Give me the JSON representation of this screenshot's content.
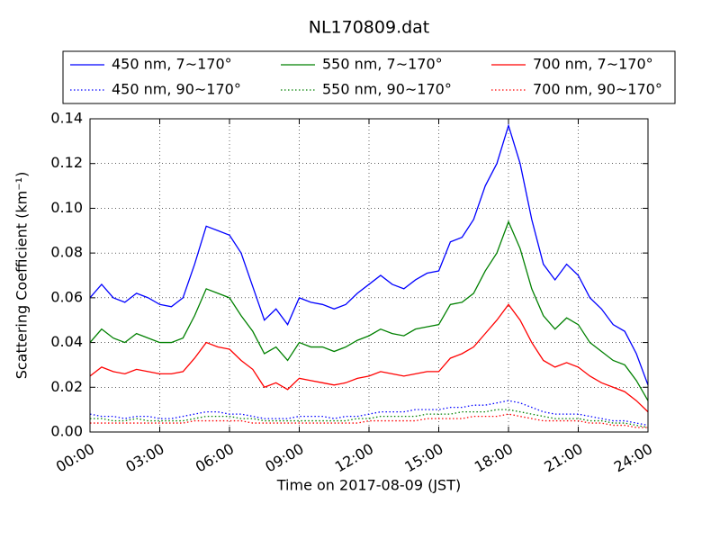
{
  "chart_data": {
    "type": "line",
    "title": "NL170809.dat",
    "xlabel": "Time on 2017-08-09 (JST)",
    "ylabel": "Scattering Coefficient (km⁻¹)",
    "legend_position": "top",
    "grid": true,
    "xlim": [
      0,
      24
    ],
    "xticks": [
      {
        "value": 0,
        "label": "00:00"
      },
      {
        "value": 3,
        "label": "03:00"
      },
      {
        "value": 6,
        "label": "06:00"
      },
      {
        "value": 9,
        "label": "09:00"
      },
      {
        "value": 12,
        "label": "12:00"
      },
      {
        "value": 15,
        "label": "15:00"
      },
      {
        "value": 18,
        "label": "18:00"
      },
      {
        "value": 21,
        "label": "21:00"
      },
      {
        "value": 24,
        "label": "24:00"
      }
    ],
    "ylim": [
      0,
      0.14
    ],
    "yticks": [
      {
        "value": 0,
        "label": "0.00"
      },
      {
        "value": 0.02,
        "label": "0.02"
      },
      {
        "value": 0.04,
        "label": "0.04"
      },
      {
        "value": 0.06,
        "label": "0.06"
      },
      {
        "value": 0.08,
        "label": "0.08"
      },
      {
        "value": 0.1,
        "label": "0.10"
      },
      {
        "value": 0.12,
        "label": "0.12"
      },
      {
        "value": 0.14,
        "label": "0.14"
      }
    ],
    "x": [
      0,
      0.5,
      1,
      1.5,
      2,
      2.5,
      3,
      3.5,
      4,
      4.5,
      5,
      5.5,
      6,
      6.5,
      7,
      7.5,
      8,
      8.5,
      9,
      9.5,
      10,
      10.5,
      11,
      11.5,
      12,
      12.5,
      13,
      13.5,
      14,
      14.5,
      15,
      15.5,
      16,
      16.5,
      17,
      17.5,
      18,
      18.5,
      19,
      19.5,
      20,
      20.5,
      21,
      21.5,
      22,
      22.5,
      23,
      23.5,
      24
    ],
    "series": [
      {
        "name": "450 nm, 7∼170°",
        "color": "#0000ff",
        "linestyle": "solid",
        "values": [
          0.06,
          0.066,
          0.06,
          0.058,
          0.062,
          0.06,
          0.057,
          0.056,
          0.06,
          0.075,
          0.092,
          0.09,
          0.088,
          0.08,
          0.065,
          0.05,
          0.055,
          0.048,
          0.06,
          0.058,
          0.057,
          0.055,
          0.057,
          0.062,
          0.066,
          0.07,
          0.066,
          0.064,
          0.068,
          0.071,
          0.072,
          0.085,
          0.087,
          0.095,
          0.11,
          0.12,
          0.137,
          0.12,
          0.095,
          0.075,
          0.068,
          0.075,
          0.07,
          0.06,
          0.055,
          0.048,
          0.045,
          0.035,
          0.021
        ]
      },
      {
        "name": "450 nm, 90∼170°",
        "color": "#0000ff",
        "linestyle": "dotted",
        "values": [
          0.008,
          0.007,
          0.007,
          0.006,
          0.007,
          0.007,
          0.006,
          0.006,
          0.007,
          0.008,
          0.009,
          0.009,
          0.008,
          0.008,
          0.007,
          0.006,
          0.006,
          0.006,
          0.007,
          0.007,
          0.007,
          0.006,
          0.007,
          0.007,
          0.008,
          0.009,
          0.009,
          0.009,
          0.01,
          0.01,
          0.01,
          0.011,
          0.011,
          0.012,
          0.012,
          0.013,
          0.014,
          0.013,
          0.011,
          0.009,
          0.008,
          0.008,
          0.008,
          0.007,
          0.006,
          0.005,
          0.005,
          0.004,
          0.003
        ]
      },
      {
        "name": "550 nm, 7∼170°",
        "color": "#008000",
        "linestyle": "solid",
        "values": [
          0.04,
          0.046,
          0.042,
          0.04,
          0.044,
          0.042,
          0.04,
          0.04,
          0.042,
          0.052,
          0.064,
          0.062,
          0.06,
          0.052,
          0.045,
          0.035,
          0.038,
          0.032,
          0.04,
          0.038,
          0.038,
          0.036,
          0.038,
          0.041,
          0.043,
          0.046,
          0.044,
          0.043,
          0.046,
          0.047,
          0.048,
          0.057,
          0.058,
          0.062,
          0.072,
          0.08,
          0.094,
          0.082,
          0.064,
          0.052,
          0.046,
          0.051,
          0.048,
          0.04,
          0.036,
          0.032,
          0.03,
          0.023,
          0.014
        ]
      },
      {
        "name": "550 nm, 90∼170°",
        "color": "#008000",
        "linestyle": "dotted",
        "values": [
          0.006,
          0.006,
          0.005,
          0.005,
          0.006,
          0.005,
          0.005,
          0.005,
          0.005,
          0.006,
          0.007,
          0.007,
          0.007,
          0.006,
          0.006,
          0.005,
          0.005,
          0.005,
          0.005,
          0.005,
          0.005,
          0.005,
          0.005,
          0.006,
          0.006,
          0.007,
          0.007,
          0.007,
          0.007,
          0.008,
          0.008,
          0.008,
          0.009,
          0.009,
          0.009,
          0.01,
          0.01,
          0.009,
          0.008,
          0.007,
          0.006,
          0.006,
          0.006,
          0.005,
          0.005,
          0.004,
          0.004,
          0.003,
          0.002
        ]
      },
      {
        "name": "700 nm, 7∼170°",
        "color": "#ff0000",
        "linestyle": "solid",
        "values": [
          0.025,
          0.029,
          0.027,
          0.026,
          0.028,
          0.027,
          0.026,
          0.026,
          0.027,
          0.033,
          0.04,
          0.038,
          0.037,
          0.032,
          0.028,
          0.02,
          0.022,
          0.019,
          0.024,
          0.023,
          0.022,
          0.021,
          0.022,
          0.024,
          0.025,
          0.027,
          0.026,
          0.025,
          0.026,
          0.027,
          0.027,
          0.033,
          0.035,
          0.038,
          0.044,
          0.05,
          0.057,
          0.05,
          0.04,
          0.032,
          0.029,
          0.031,
          0.029,
          0.025,
          0.022,
          0.02,
          0.018,
          0.014,
          0.009
        ]
      },
      {
        "name": "700 nm, 90∼170°",
        "color": "#ff0000",
        "linestyle": "dotted",
        "values": [
          0.004,
          0.004,
          0.004,
          0.004,
          0.004,
          0.004,
          0.004,
          0.004,
          0.004,
          0.005,
          0.005,
          0.005,
          0.005,
          0.005,
          0.004,
          0.004,
          0.004,
          0.004,
          0.004,
          0.004,
          0.004,
          0.004,
          0.004,
          0.004,
          0.005,
          0.005,
          0.005,
          0.005,
          0.005,
          0.006,
          0.006,
          0.006,
          0.006,
          0.007,
          0.007,
          0.007,
          0.008,
          0.007,
          0.006,
          0.005,
          0.005,
          0.005,
          0.005,
          0.004,
          0.004,
          0.003,
          0.003,
          0.002,
          0.002
        ]
      }
    ]
  }
}
